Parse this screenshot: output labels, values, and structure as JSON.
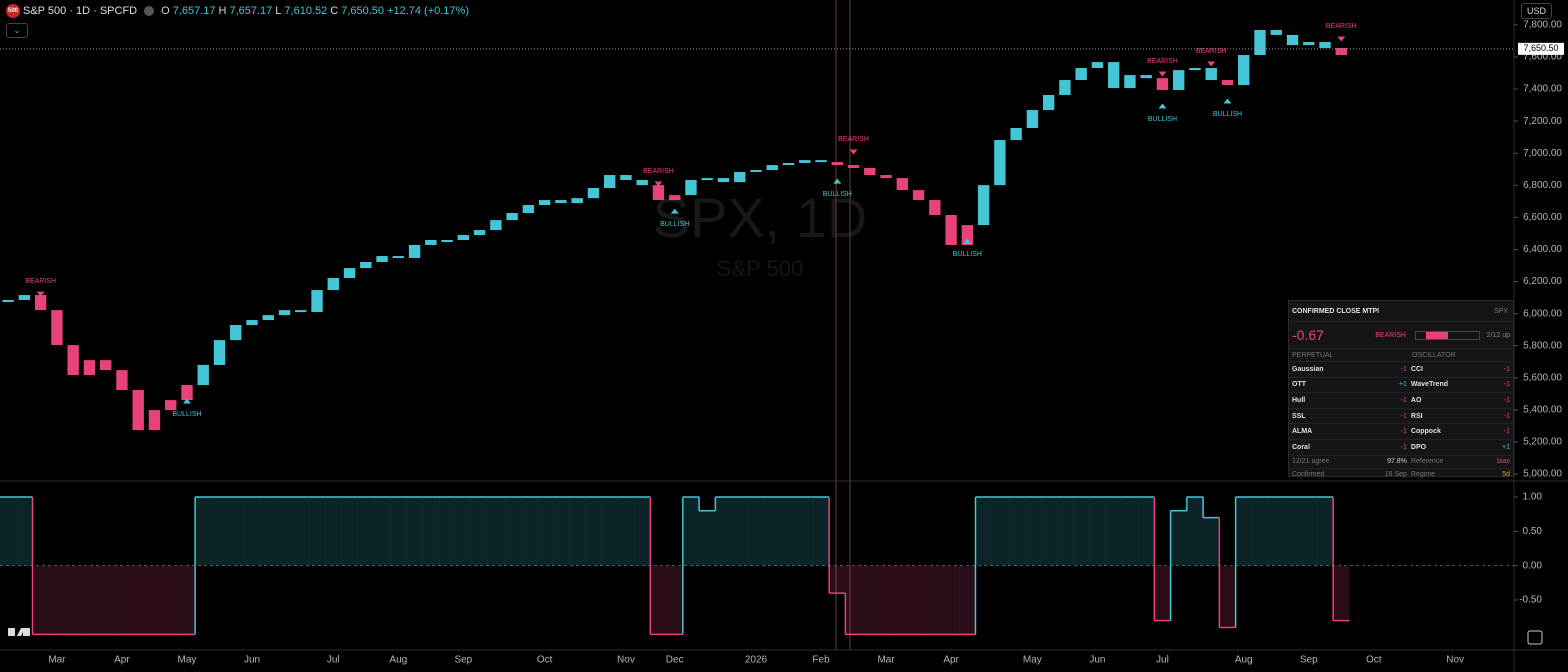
{
  "header": {
    "logo": "500",
    "symbol": "S&P 500 · 1D · SPCFD",
    "o_label": "O",
    "open": "7,657.17",
    "h_label": "H",
    "high": "7,657.17",
    "l_label": "L",
    "low": "7,610.52",
    "c_label": "C",
    "close": "7,650.50",
    "change": "+12.74 (+0.17%)",
    "currency": "USD"
  },
  "watermark": {
    "title": "SPX, 1D",
    "subtitle": "S&P 500"
  },
  "chart_data": [
    {
      "type": "candle",
      "values": [
        6085,
        6116,
        6022,
        5804,
        5617,
        5710,
        5648,
        5524,
        5274,
        5399,
        5461,
        5555,
        5680,
        5835,
        5929,
        5960,
        5991,
        6022,
        6010,
        6147,
        6222,
        6284,
        6322,
        6359,
        6347,
        6428,
        6459,
        6459,
        6490,
        6521,
        6583,
        6627,
        6677,
        6708,
        6689,
        6720,
        6783,
        6864,
        6833,
        6801,
        6708,
        6739,
        6833,
        6845,
        6820,
        6883,
        6895,
        6926,
        6939,
        6957,
        6945,
        6926,
        6908,
        6864,
        6845,
        6770,
        6708,
        6615,
        6428,
        6552,
        6801,
        7082,
        7157,
        7269,
        7363,
        7456,
        7531,
        7568,
        7406,
        7487,
        7468,
        7394,
        7518,
        7531,
        7456,
        7425,
        7612,
        7768,
        7737,
        7674,
        7693,
        7656,
        7612,
        null,
        null,
        null,
        null,
        null,
        null,
        null,
        null,
        null,
        null
      ],
      "colors": {
        "up": "#45c6d6",
        "down": "#e8427a"
      },
      "ylim": [
        4963,
        7955
      ],
      "yticks": [
        {
          "value": 5000,
          "label": "5,000.00"
        },
        {
          "value": 5200,
          "label": "5,200.00"
        },
        {
          "value": 5400,
          "label": "5,400.00"
        },
        {
          "value": 5600,
          "label": "5,600.00"
        },
        {
          "value": 5800,
          "label": "5,800.00"
        },
        {
          "value": 6000,
          "label": "6,000.00"
        },
        {
          "value": 6200,
          "label": "6,200.00"
        },
        {
          "value": 6400,
          "label": "6,400.00"
        },
        {
          "value": 6600,
          "label": "6,600.00"
        },
        {
          "value": 6800,
          "label": "6,800.00"
        },
        {
          "value": 7000,
          "label": "7,000.00"
        },
        {
          "value": 7200,
          "label": "7,200.00"
        },
        {
          "value": 7400,
          "label": "7,400.00"
        },
        {
          "value": 7600,
          "label": "7,600.00"
        },
        {
          "value": 7800,
          "label": "7,800.00"
        }
      ],
      "last_price": {
        "value": 7650.5,
        "label": "7,650.50"
      },
      "signals": [
        {
          "label": "BEARISH",
          "index": 2,
          "position": "above"
        },
        {
          "label": "BULLISH",
          "index": 11,
          "position": "below"
        },
        {
          "label": "BEARISH",
          "index": 40,
          "position": "above"
        },
        {
          "label": "BULLISH",
          "index": 41,
          "position": "below"
        },
        {
          "label": "BULLISH",
          "index": 51,
          "position": "below"
        },
        {
          "label": "BEARISH",
          "index": 52,
          "position": "above"
        },
        {
          "label": "BULLISH",
          "index": 59,
          "position": "below"
        },
        {
          "label": "BEARISH",
          "index": 71,
          "position": "above"
        },
        {
          "label": "BULLISH",
          "index": 71,
          "position": "below"
        },
        {
          "label": "BEARISH",
          "index": 74,
          "position": "above"
        },
        {
          "label": "BULLISH",
          "index": 75,
          "position": "below"
        },
        {
          "label": "BEARISH",
          "index": 82,
          "position": "above"
        }
      ]
    },
    {
      "type": "step",
      "categories": [
        null,
        null,
        null,
        "Mar",
        null,
        null,
        null,
        "Apr",
        null,
        null,
        null,
        "May",
        null,
        null,
        null,
        "Jun",
        null,
        null,
        null,
        null,
        "Jul",
        null,
        null,
        null,
        "Aug",
        null,
        null,
        null,
        "Sep",
        null,
        null,
        null,
        null,
        "Oct",
        null,
        null,
        null,
        null,
        "Nov",
        null,
        null,
        "Dec",
        null,
        null,
        null,
        null,
        "2026",
        null,
        null,
        null,
        "Feb",
        null,
        null,
        null,
        "Mar",
        null,
        null,
        null,
        "Apr",
        null,
        null,
        null,
        null,
        "May",
        null,
        null,
        null,
        "Jun",
        null,
        null,
        null,
        "Jul",
        null,
        null,
        null,
        null,
        "Aug",
        null,
        null,
        null,
        "Sep",
        null,
        null,
        null,
        "Oct",
        null,
        null,
        null,
        null,
        "Nov",
        null,
        null,
        null
      ],
      "values": [
        1,
        1,
        -1,
        -1,
        -1,
        -1,
        -1,
        -1,
        -1,
        -1,
        -1,
        -1,
        1,
        1,
        1,
        1,
        1,
        1,
        1,
        1,
        1,
        1,
        1,
        1,
        1,
        1,
        1,
        1,
        1,
        1,
        1,
        1,
        1,
        1,
        1,
        1,
        1,
        1,
        1,
        1,
        -1,
        -1,
        1,
        0.8,
        1,
        1,
        1,
        1,
        1,
        1,
        1,
        -0.4,
        -1,
        -1,
        -1,
        -1,
        -1,
        -1,
        -1,
        -1,
        1,
        1,
        1,
        1,
        1,
        1,
        1,
        1,
        1,
        1,
        1,
        -0.8,
        0.8,
        1,
        0.7,
        -0.9,
        1,
        1,
        1,
        1,
        1,
        1,
        -0.8,
        null,
        null,
        null,
        null,
        null,
        null,
        null,
        null,
        null,
        null
      ],
      "colors": {
        "up": "#45c6d6",
        "down": "#e8427a"
      },
      "ylim": [
        -1.228,
        1.218
      ],
      "yticks": [
        {
          "value": 1,
          "label": "1.00"
        },
        {
          "value": 0.5,
          "label": "0.50"
        },
        {
          "value": 0,
          "label": "0.00"
        },
        {
          "value": -0.5,
          "label": "-0.50"
        }
      ],
      "zero_line": true
    }
  ],
  "table": {
    "title": "CONFIRMED CLOSE MTPI",
    "symbol": "SPX",
    "score": "-0.67",
    "state": "BEARISH",
    "up_count": "2/12 up",
    "left_header": "PERPETUAL",
    "right_header": "OSCILLATOR",
    "rows": [
      [
        "Gaussian",
        "-1",
        "CCI",
        "-1"
      ],
      [
        "OTT",
        "+1",
        "WaveTrend",
        "-1"
      ],
      [
        "Hull",
        "-1",
        "AO",
        "-1"
      ],
      [
        "SSL",
        "-1",
        "RSI",
        "-1"
      ],
      [
        "ALMA",
        "-1",
        "Coppock",
        "-1"
      ],
      [
        "Coral",
        "-1",
        "DPO",
        "+1"
      ]
    ],
    "footer": [
      [
        "12/21 agree",
        "97.8%",
        "Reference",
        "bias"
      ],
      [
        "Confirmed",
        "18 Sep",
        "Regime",
        "5d"
      ]
    ]
  }
}
